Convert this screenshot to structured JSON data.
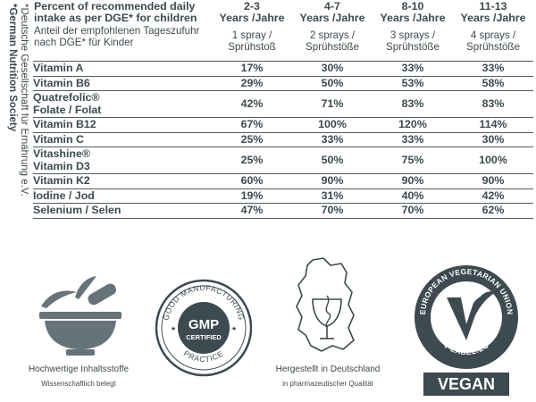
{
  "sidebar": {
    "line1": "*German Nutrition Society",
    "line2": "*Deutsche Gesellschaft für Ernährung e.V."
  },
  "table": {
    "header_en": "Percent of recommended daily intake as per DGE* for children",
    "header_de": "Anteil der empfohlenen Tageszufuhr nach DGE* für Kinder",
    "columns": [
      {
        "age": "2-3",
        "years": "Years /Jahre",
        "dose_en": "1 spray /",
        "dose_de": "Sprühstoß"
      },
      {
        "age": "4-7",
        "years": "Years /Jahre",
        "dose_en": "2 sprays /",
        "dose_de": "Sprühstöße"
      },
      {
        "age": "8-10",
        "years": "Years /Jahre",
        "dose_en": "3 sprays /",
        "dose_de": "Sprühstöße"
      },
      {
        "age": "11-13",
        "years": "Years /Jahre",
        "dose_en": "4 sprays /",
        "dose_de": "Sprühstöße"
      }
    ],
    "rows": [
      {
        "l1": "Vitamin A",
        "l2": "",
        "values": [
          "17%",
          "30%",
          "33%",
          "33%"
        ]
      },
      {
        "l1": "Vitamin B6",
        "l2": "",
        "values": [
          "29%",
          "50%",
          "53%",
          "58%"
        ]
      },
      {
        "l1": "Quatrefolic®",
        "l2": "Folate / Folat",
        "values": [
          "42%",
          "71%",
          "83%",
          "83%"
        ]
      },
      {
        "l1": "Vitamin B12",
        "l2": "",
        "values": [
          "67%",
          "100%",
          "120%",
          "114%"
        ]
      },
      {
        "l1": "Vitamin C",
        "l2": "",
        "values": [
          "25%",
          "33%",
          "33%",
          "30%"
        ]
      },
      {
        "l1": "Vitashine®",
        "l2": "Vitamin D3",
        "values": [
          "25%",
          "50%",
          "75%",
          "100%"
        ]
      },
      {
        "l1": "Vitamin K2",
        "l2": "",
        "values": [
          "60%",
          "90%",
          "90%",
          "90%"
        ]
      },
      {
        "l1": "Iodine / Jod",
        "l2": "",
        "values": [
          "19%",
          "31%",
          "40%",
          "42%"
        ]
      },
      {
        "l1": "Selenium / Selen",
        "l2": "",
        "values": [
          "47%",
          "70%",
          "70%",
          "62%"
        ]
      }
    ]
  },
  "badges": {
    "ingredients": {
      "icon": "mortar-pestle-icon",
      "caption": "Hochwertige Inhaltsstoffe",
      "sub": "Wissenschaftlich belegt"
    },
    "gmp": {
      "icon": "gmp-seal-icon",
      "ring_top": "GOOD MANUFACTURING",
      "ring_bottom": "PRACTICE",
      "center1": "GMP",
      "center2": "CERTIFIED"
    },
    "germany": {
      "icon": "germany-map-icon",
      "caption": "Hergestellt in Deutschland",
      "sub": "in pharmazeutischer Qualität"
    },
    "vegan": {
      "icon": "v-label-icon",
      "ring_top": "EUROPEAN VEGETARIAN UNION",
      "ring_bottom": "V-LABEL.EU",
      "label": "VEGAN"
    }
  },
  "colors": {
    "text": "#3d4a4f",
    "rule": "#4f5d62"
  }
}
